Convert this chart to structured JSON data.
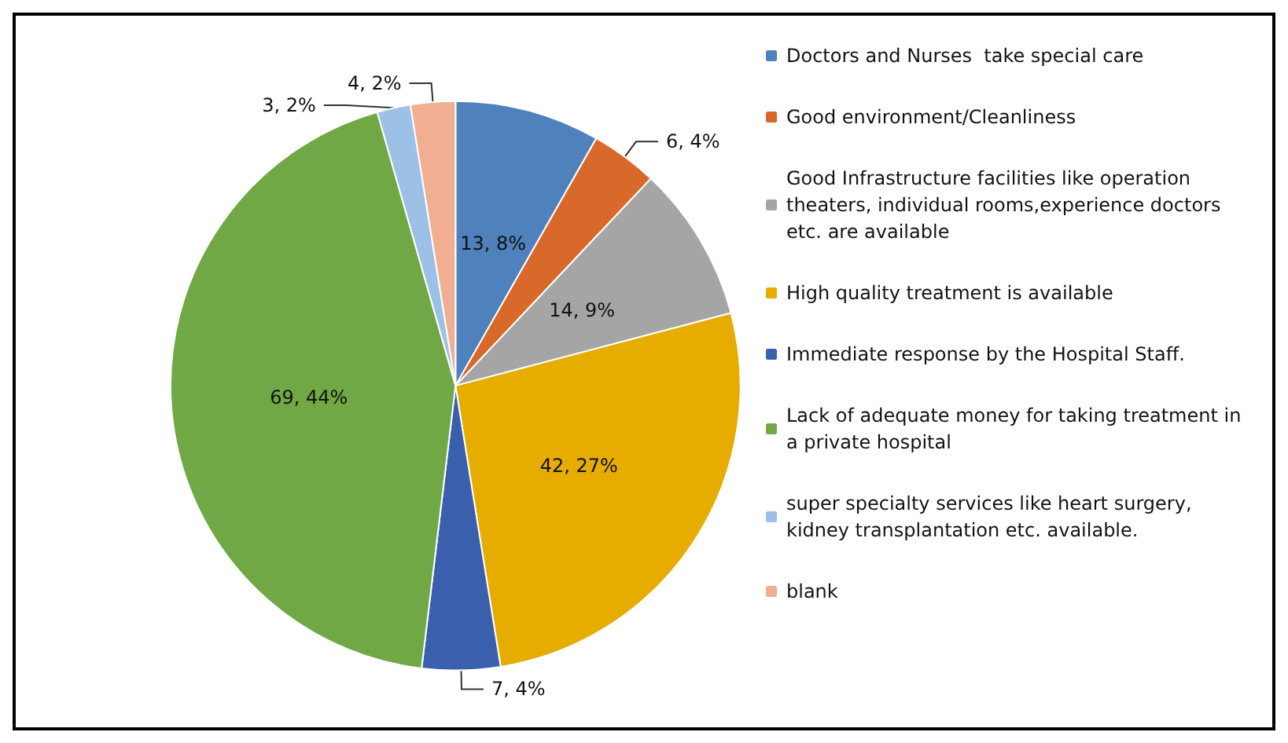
{
  "chart_data": {
    "type": "pie",
    "categories": [
      "Doctors and Nurses  take special care",
      "Good environment/Cleanliness",
      "Good Infrastructure facilities like operation theaters, individual rooms,experience doctors etc. are available",
      "High quality treatment is available",
      "Immediate response by the Hospital Staff.",
      "Lack of adequate money for taking treatment in a private hospital",
      "super specialty services like heart surgery, kidney transplantation etc. available.",
      "blank"
    ],
    "values": [
      13,
      6,
      14,
      42,
      7,
      69,
      3,
      4
    ],
    "value_labels": [
      "13, 8%",
      "6, 4%",
      "14, 9%",
      "42, 27%",
      "7, 4%",
      "69, 44%",
      "3, 2%",
      "4, 2%"
    ],
    "colors": [
      "#4f81bd",
      "#d9692a",
      "#a5a5a5",
      "#e6ac00",
      "#3a5fad",
      "#70a845",
      "#9dc0e6",
      "#f2ae92"
    ],
    "legend": "right"
  }
}
